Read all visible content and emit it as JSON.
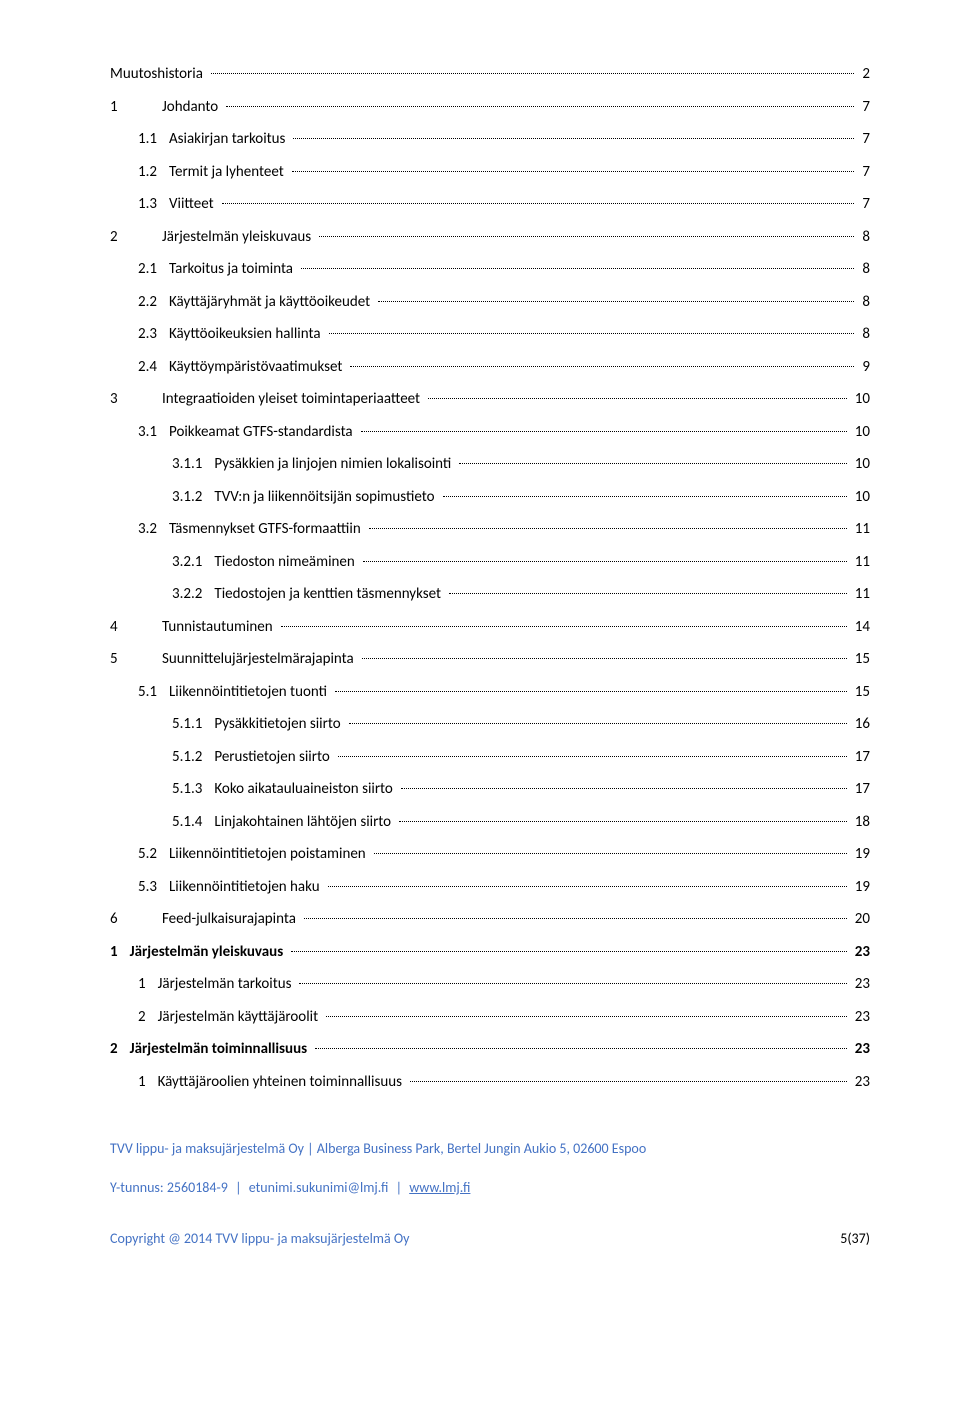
{
  "toc": [
    {
      "level": 1,
      "num": "",
      "title": "Muutoshistoria",
      "page": "2"
    },
    {
      "level": 1,
      "num": "1",
      "title": "Johdanto",
      "page": "7"
    },
    {
      "level": 2,
      "num": "1.1",
      "title": "Asiakirjan tarkoitus",
      "page": "7"
    },
    {
      "level": 2,
      "num": "1.2",
      "title": "Termit ja lyhenteet",
      "page": "7"
    },
    {
      "level": 2,
      "num": "1.3",
      "title": "Viitteet",
      "page": "7"
    },
    {
      "level": 1,
      "num": "2",
      "title": "Järjestelmän yleiskuvaus",
      "page": "8"
    },
    {
      "level": 2,
      "num": "2.1",
      "title": "Tarkoitus ja toiminta",
      "page": "8"
    },
    {
      "level": 2,
      "num": "2.2",
      "title": "Käyttäjäryhmät ja käyttöoikeudet",
      "page": "8"
    },
    {
      "level": 2,
      "num": "2.3",
      "title": "Käyttöoikeuksien hallinta",
      "page": "8"
    },
    {
      "level": 2,
      "num": "2.4",
      "title": "Käyttöympäristövaatimukset",
      "page": "9"
    },
    {
      "level": 1,
      "num": "3",
      "title": "Integraatioiden yleiset toimintaperiaatteet",
      "page": "10"
    },
    {
      "level": 2,
      "num": "3.1",
      "title": "Poikkeamat GTFS-standardista",
      "page": "10"
    },
    {
      "level": 3,
      "num": "3.1.1",
      "title": "Pysäkkien ja linjojen nimien lokalisointi",
      "page": "10"
    },
    {
      "level": 3,
      "num": "3.1.2",
      "title": "TVV:n ja liikennöitsijän sopimustieto",
      "page": "10"
    },
    {
      "level": 2,
      "num": "3.2",
      "title": "Täsmennykset GTFS-formaattiin",
      "page": "11"
    },
    {
      "level": 3,
      "num": "3.2.1",
      "title": "Tiedoston nimeäminen",
      "page": "11"
    },
    {
      "level": 3,
      "num": "3.2.2",
      "title": "Tiedostojen ja kenttien täsmennykset",
      "page": "11"
    },
    {
      "level": 1,
      "num": "4",
      "title": "Tunnistautuminen",
      "page": "14"
    },
    {
      "level": 1,
      "num": "5",
      "title": "Suunnittelujärjestelmärajapinta",
      "page": "15"
    },
    {
      "level": 2,
      "num": "5.1",
      "title": "Liikennöintitietojen tuonti",
      "page": "15"
    },
    {
      "level": 3,
      "num": "5.1.1",
      "title": "Pysäkkitietojen siirto",
      "page": "16"
    },
    {
      "level": 3,
      "num": "5.1.2",
      "title": "Perustietojen siirto",
      "page": "17"
    },
    {
      "level": 3,
      "num": "5.1.3",
      "title": "Koko aikatauluaineiston siirto",
      "page": "17"
    },
    {
      "level": 3,
      "num": "5.1.4",
      "title": "Linjakohtainen lähtöjen siirto",
      "page": "18"
    },
    {
      "level": 2,
      "num": "5.2",
      "title": "Liikennöintitietojen poistaminen",
      "page": "19"
    },
    {
      "level": 2,
      "num": "5.3",
      "title": "Liikennöintitietojen haku",
      "page": "19"
    },
    {
      "level": 1,
      "num": "6",
      "title": "Feed-julkaisurajapinta",
      "page": "20"
    },
    {
      "level": 1,
      "num": "1",
      "title": "Järjestelmän yleiskuvaus",
      "page": "23",
      "alt": true,
      "bold": true
    },
    {
      "level": 2,
      "num": "1",
      "title": "Järjestelmän tarkoitus",
      "page": "23",
      "alt": true
    },
    {
      "level": 2,
      "num": "2",
      "title": "Järjestelmän käyttäjäroolit",
      "page": "23",
      "alt": true
    },
    {
      "level": 1,
      "num": "2",
      "title": "Järjestelmän toiminnallisuus",
      "page": "23",
      "alt": true,
      "bold": true
    },
    {
      "level": 2,
      "num": "1",
      "title": "Käyttäjäroolien yhteinen toiminnallisuus",
      "page": "23",
      "alt": true
    }
  ],
  "footer": {
    "company_line": "TVV lippu- ja maksujärjestelmä Oy | Alberga Business Park, Bertel Jungin Aukio 5, 02600 Espoo",
    "ytunnus_label": "Y-tunnus:",
    "ytunnus": "2560184-9",
    "email": "etunimi.sukunimi@lmj.fi",
    "website": "www.lmj.fi",
    "copyright": "Copyright @ 2014 TVV lippu- ja maksujärjestelmä Oy",
    "pagenum": "5(37)"
  },
  "colors": {
    "text": "#000000",
    "link": "#4472c4",
    "background": "#ffffff"
  }
}
